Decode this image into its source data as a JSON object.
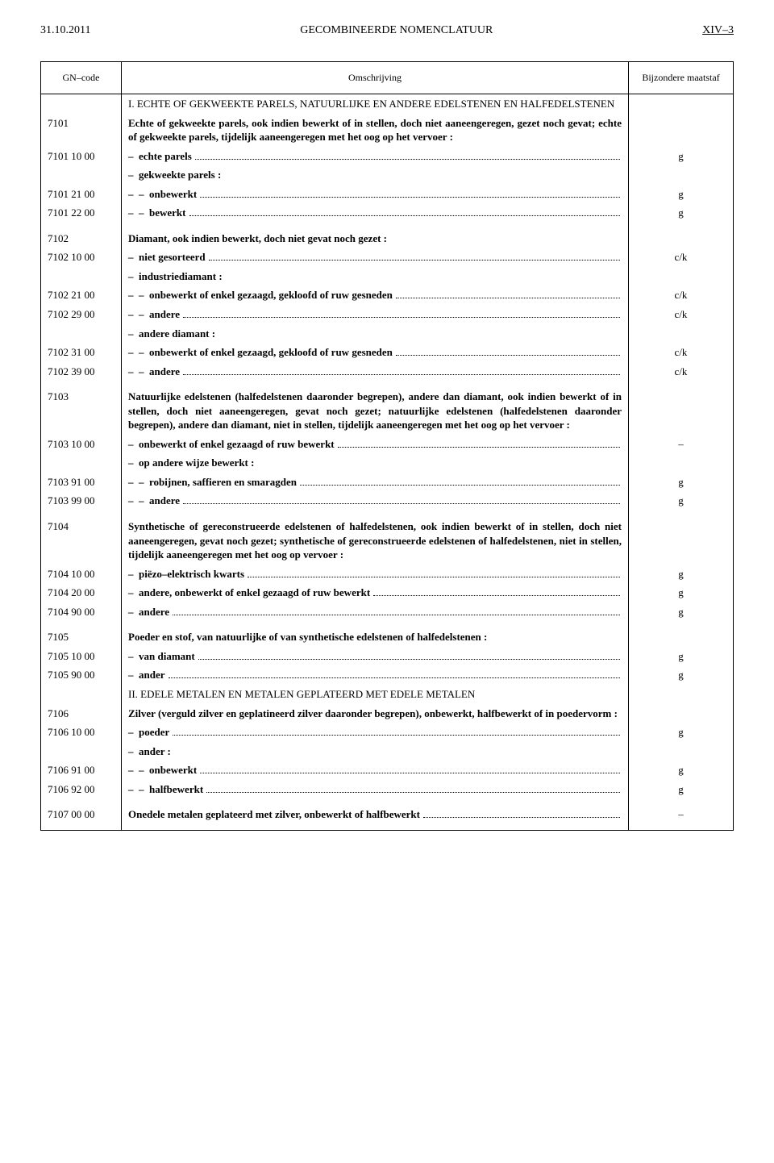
{
  "header": {
    "date": "31.10.2011",
    "title": "GECOMBINEERDE NOMENCLATUUR",
    "pageref": "XIV–3"
  },
  "columns": {
    "code": "GN–code",
    "desc": "Omschrijving",
    "unit": "Bijzondere maatstaf"
  },
  "section1": "I. ECHTE OF GEKWEEKTE PARELS, NATUURLIJKE EN ANDERE EDELSTENEN EN HALFEDELSTENEN",
  "r7101": {
    "code": "7101",
    "desc": "Echte of gekweekte parels, ook indien bewerkt of in stellen, doch niet aaneengeregen, gezet noch gevat; echte of gekweekte parels, tijdelijk aaneengeregen met het oog op het vervoer :"
  },
  "r7101_10": {
    "code": "7101 10 00",
    "prefix": "–  ",
    "text": "echte parels",
    "unit": "g"
  },
  "r7101_gek": {
    "prefix": "–  ",
    "text": "gekweekte parels :"
  },
  "r7101_21": {
    "code": "7101 21 00",
    "prefix": "–  –  ",
    "text": "onbewerkt",
    "unit": "g"
  },
  "r7101_22": {
    "code": "7101 22 00",
    "prefix": "–  –  ",
    "text": "bewerkt",
    "unit": "g"
  },
  "r7102": {
    "code": "7102",
    "desc": "Diamant, ook indien bewerkt, doch niet gevat noch gezet :"
  },
  "r7102_10": {
    "code": "7102 10 00",
    "prefix": "–  ",
    "text": "niet gesorteerd",
    "unit": "c/k"
  },
  "r7102_ind": {
    "prefix": "–  ",
    "text": "industriediamant :"
  },
  "r7102_21": {
    "code": "7102 21 00",
    "prefix": "–  –  ",
    "text": "onbewerkt of enkel gezaagd, gekloofd of ruw gesneden",
    "unit": "c/k"
  },
  "r7102_29": {
    "code": "7102 29 00",
    "prefix": "–  –  ",
    "text": "andere",
    "unit": "c/k"
  },
  "r7102_and": {
    "prefix": "–  ",
    "text": "andere diamant :"
  },
  "r7102_31": {
    "code": "7102 31 00",
    "prefix": "–  –  ",
    "text": "onbewerkt of enkel gezaagd, gekloofd of ruw gesneden",
    "unit": "c/k"
  },
  "r7102_39": {
    "code": "7102 39 00",
    "prefix": "–  –  ",
    "text": "andere",
    "unit": "c/k"
  },
  "r7103": {
    "code": "7103",
    "desc": "Natuurlijke edelstenen (halfedelstenen daaronder begrepen), andere dan diamant, ook indien bewerkt of in stellen, doch niet aaneengeregen, gevat noch gezet; natuurlijke edelstenen (halfedelstenen daaronder begrepen), andere dan diamant, niet in stellen, tijdelijk aaneengeregen met het oog op het vervoer :"
  },
  "r7103_10": {
    "code": "7103 10 00",
    "prefix": "–  ",
    "text": "onbewerkt of enkel gezaagd of ruw bewerkt",
    "unit": "–"
  },
  "r7103_op": {
    "prefix": "–  ",
    "text": "op andere wijze bewerkt :"
  },
  "r7103_91": {
    "code": "7103 91 00",
    "prefix": "–  –  ",
    "text": "robijnen, saffieren en smaragden",
    "unit": "g"
  },
  "r7103_99": {
    "code": "7103 99 00",
    "prefix": "–  –  ",
    "text": "andere",
    "unit": "g"
  },
  "r7104": {
    "code": "7104",
    "desc": "Synthetische of gereconstrueerde edelstenen of halfedelstenen, ook indien bewerkt of in stellen, doch niet aaneengeregen, gevat noch gezet; synthetische of gereconstrueerde edelstenen of halfedelstenen, niet in stellen, tijdelijk aaneengeregen met het oog op vervoer :"
  },
  "r7104_10": {
    "code": "7104 10 00",
    "prefix": "–  ",
    "text": "piëzo–elektrisch kwarts",
    "unit": "g"
  },
  "r7104_20": {
    "code": "7104 20 00",
    "prefix": "–  ",
    "text": "andere, onbewerkt of enkel gezaagd of ruw bewerkt",
    "unit": "g"
  },
  "r7104_90": {
    "code": "7104 90 00",
    "prefix": "–  ",
    "text": "andere",
    "unit": "g"
  },
  "r7105": {
    "code": "7105",
    "desc": "Poeder en stof, van natuurlijke of van synthetische edelstenen of halfedelstenen :"
  },
  "r7105_10": {
    "code": "7105 10 00",
    "prefix": "–  ",
    "text": "van diamant",
    "unit": "g"
  },
  "r7105_90": {
    "code": "7105 90 00",
    "prefix": "–  ",
    "text": "ander",
    "unit": "g"
  },
  "section2": "II. EDELE METALEN EN METALEN GEPLATEERD MET EDELE METALEN",
  "r7106": {
    "code": "7106",
    "desc": "Zilver (verguld zilver en geplatineerd zilver daaronder begrepen), onbewerkt, halfbewerkt of in poedervorm :"
  },
  "r7106_10": {
    "code": "7106 10 00",
    "prefix": "–  ",
    "text": "poeder",
    "unit": "g"
  },
  "r7106_and": {
    "prefix": "–  ",
    "text": "ander :"
  },
  "r7106_91": {
    "code": "7106 91 00",
    "prefix": "–  –  ",
    "text": "onbewerkt",
    "unit": "g"
  },
  "r7106_92": {
    "code": "7106 92 00",
    "prefix": "–  –  ",
    "text": "halfbewerkt",
    "unit": "g"
  },
  "r7107": {
    "code": "7107 00 00",
    "text": "Onedele metalen geplateerd met zilver, onbewerkt of halfbewerkt",
    "unit": "–"
  }
}
